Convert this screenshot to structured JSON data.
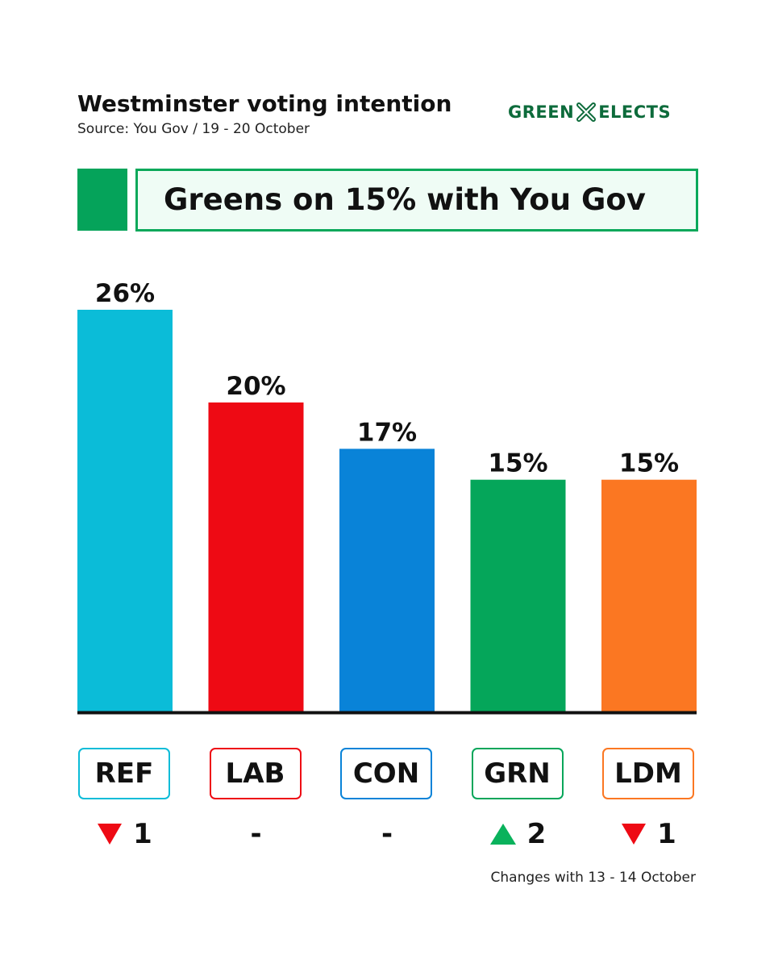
{
  "header": {
    "title": "Westminster voting intention",
    "source": "Source: You Gov / 19 - 20 October",
    "logo_left": "GREEN",
    "logo_right": "ELECTS",
    "logo_color": "#0d6b3b"
  },
  "banner": {
    "text": "Greens on 15% with You Gov",
    "accent_color": "#05a35a",
    "border_color": "#0aa85a"
  },
  "chart_data": {
    "type": "bar",
    "title": "Westminster voting intention",
    "categories": [
      "REF",
      "LAB",
      "CON",
      "GRN",
      "LDM"
    ],
    "values": [
      26,
      20,
      17,
      15,
      15
    ],
    "value_labels": [
      "26%",
      "20%",
      "17%",
      "15%",
      "15%"
    ],
    "colors": [
      "#0bbcd8",
      "#ee0a14",
      "#0983d8",
      "#05a65a",
      "#fb7722"
    ],
    "ylim": [
      0,
      26
    ],
    "xlabel": "",
    "ylabel": "",
    "grid": false,
    "changes": [
      {
        "direction": "down",
        "text": "1"
      },
      {
        "direction": "none",
        "text": "-"
      },
      {
        "direction": "none",
        "text": "-"
      },
      {
        "direction": "up",
        "text": "2"
      },
      {
        "direction": "down",
        "text": "1"
      }
    ]
  },
  "footnote": "Changes with 13 - 14 October"
}
